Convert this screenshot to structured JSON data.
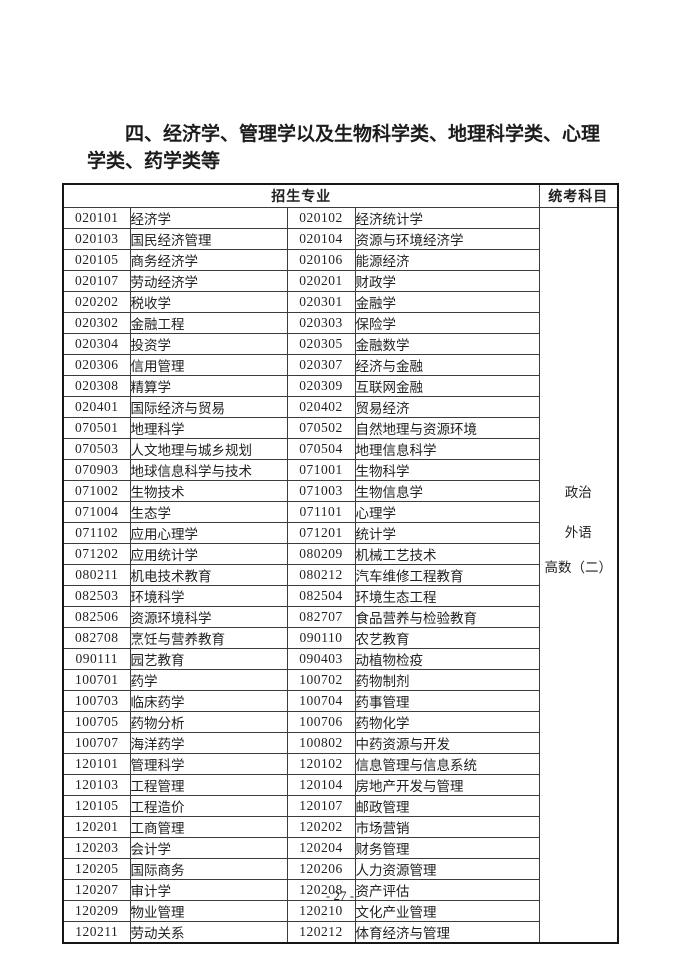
{
  "page": {
    "title_lines": [
      "四、经济学、管理学以及生物科学类、地理科学类、心理",
      "学类、药学类等"
    ],
    "page_number": "- 27 -"
  },
  "table": {
    "headers": {
      "majors": "招生专业",
      "subjects": "统考科目"
    },
    "exam_subjects": [
      "政治",
      "外语",
      "高数（二）"
    ],
    "rows": [
      [
        "020101",
        "经济学",
        "020102",
        "经济统计学"
      ],
      [
        "020103",
        "国民经济管理",
        "020104",
        "资源与环境经济学"
      ],
      [
        "020105",
        "商务经济学",
        "020106",
        "能源经济"
      ],
      [
        "020107",
        "劳动经济学",
        "020201",
        "财政学"
      ],
      [
        "020202",
        "税收学",
        "020301",
        "金融学"
      ],
      [
        "020302",
        "金融工程",
        "020303",
        "保险学"
      ],
      [
        "020304",
        "投资学",
        "020305",
        "金融数学"
      ],
      [
        "020306",
        "信用管理",
        "020307",
        "经济与金融"
      ],
      [
        "020308",
        "精算学",
        "020309",
        "互联网金融"
      ],
      [
        "020401",
        "国际经济与贸易",
        "020402",
        "贸易经济"
      ],
      [
        "070501",
        "地理科学",
        "070502",
        "自然地理与资源环境"
      ],
      [
        "070503",
        "人文地理与城乡规划",
        "070504",
        "地理信息科学"
      ],
      [
        "070903",
        "地球信息科学与技术",
        "071001",
        "生物科学"
      ],
      [
        "071002",
        "生物技术",
        "071003",
        "生物信息学"
      ],
      [
        "071004",
        "生态学",
        "071101",
        "心理学"
      ],
      [
        "071102",
        "应用心理学",
        "071201",
        "统计学"
      ],
      [
        "071202",
        "应用统计学",
        "080209",
        "机械工艺技术"
      ],
      [
        "080211",
        "机电技术教育",
        "080212",
        "汽车维修工程教育"
      ],
      [
        "082503",
        "环境科学",
        "082504",
        "环境生态工程"
      ],
      [
        "082506",
        "资源环境科学",
        "082707",
        "食品营养与检验教育"
      ],
      [
        "082708",
        "烹饪与营养教育",
        "090110",
        "农艺教育"
      ],
      [
        "090111",
        "园艺教育",
        "090403",
        "动植物检疫"
      ],
      [
        "100701",
        "药学",
        "100702",
        "药物制剂"
      ],
      [
        "100703",
        "临床药学",
        "100704",
        "药事管理"
      ],
      [
        "100705",
        "药物分析",
        "100706",
        "药物化学"
      ],
      [
        "100707",
        "海洋药学",
        "100802",
        "中药资源与开发"
      ],
      [
        "120101",
        "管理科学",
        "120102",
        "信息管理与信息系统"
      ],
      [
        "120103",
        "工程管理",
        "120104",
        "房地产开发与管理"
      ],
      [
        "120105",
        "工程造价",
        "120107",
        "邮政管理"
      ],
      [
        "120201",
        "工商管理",
        "120202",
        "市场营销"
      ],
      [
        "120203",
        "会计学",
        "120204",
        "财务管理"
      ],
      [
        "120205",
        "国际商务",
        "120206",
        "人力资源管理"
      ],
      [
        "120207",
        "审计学",
        "120208",
        "资产评估"
      ],
      [
        "120209",
        "物业管理",
        "120210",
        "文化产业管理"
      ],
      [
        "120211",
        "劳动关系",
        "120212",
        "体育经济与管理"
      ]
    ]
  }
}
